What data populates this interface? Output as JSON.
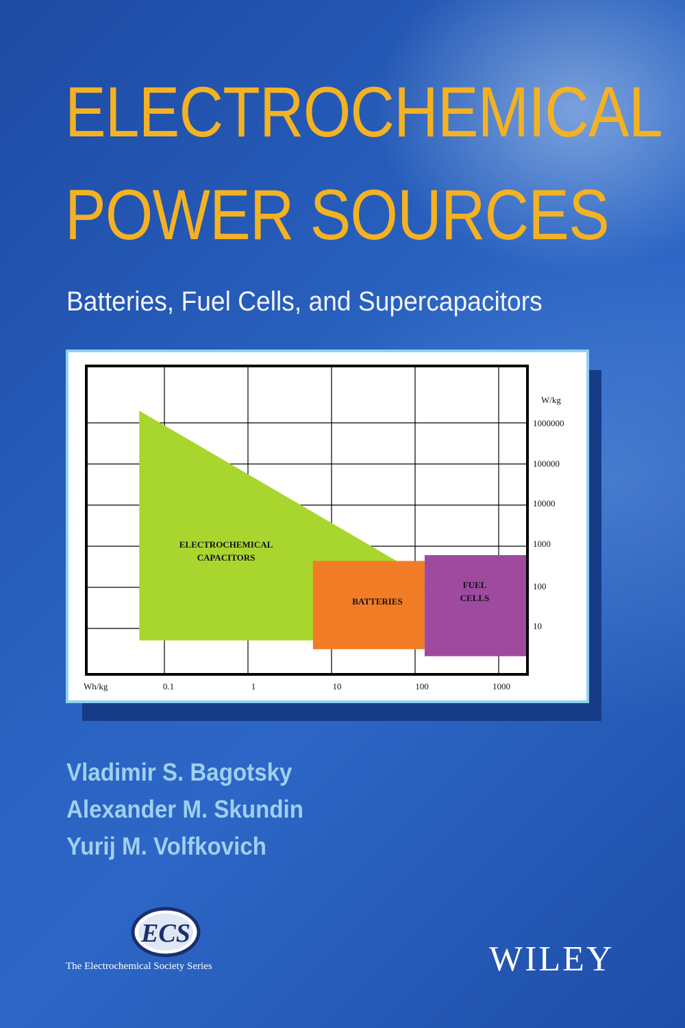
{
  "cover": {
    "title_line1": "ELECTROCHEMICAL",
    "title_line2": "POWER SOURCES",
    "subtitle": "Batteries, Fuel Cells, and Supercapacitors",
    "authors": [
      "Vladimir S. Bagotsky",
      "Alexander M. Skundin",
      "Yurij M. Volfkovich"
    ],
    "logo_text": "ECS",
    "series": "The Electrochemical Society Series",
    "publisher": "WILEY",
    "colors": {
      "title": "#f4b222",
      "author": "#9fd0f0",
      "background": "#2a63c2",
      "card_border": "#8fd2f2"
    }
  },
  "chart_data": {
    "type": "area",
    "xlabel": "Wh/kg",
    "ylabel": "W/kg",
    "x_scale": "log",
    "y_scale": "log",
    "x_ticks": [
      "0.1",
      "1",
      "10",
      "100",
      "1000"
    ],
    "y_ticks": [
      "1000000",
      "100000",
      "10000",
      "1000",
      "100",
      "10"
    ],
    "grid": true,
    "regions": [
      {
        "name": "ELECTROCHEMICAL CAPACITORS",
        "lines": [
          "ELECTROCHEMICAL",
          "CAPACITORS"
        ],
        "color": "#a9d52f",
        "polygon": [
          [
            0.05,
            3000000
          ],
          [
            60,
            500
          ],
          [
            10,
            5
          ],
          [
            0.05,
            5
          ]
        ]
      },
      {
        "name": "BATTERIES",
        "lines": [
          "BATTERIES"
        ],
        "color": "#f27c26",
        "polygon": [
          [
            6,
            500
          ],
          [
            130,
            500
          ],
          [
            130,
            3
          ],
          [
            6,
            3
          ]
        ]
      },
      {
        "name": "FUEL CELLS",
        "lines": [
          "FUEL",
          "CELLS"
        ],
        "color": "#9d4a9f",
        "polygon": [
          [
            130,
            700
          ],
          [
            2300,
            700
          ],
          [
            2300,
            2
          ],
          [
            130,
            2
          ]
        ]
      }
    ]
  }
}
